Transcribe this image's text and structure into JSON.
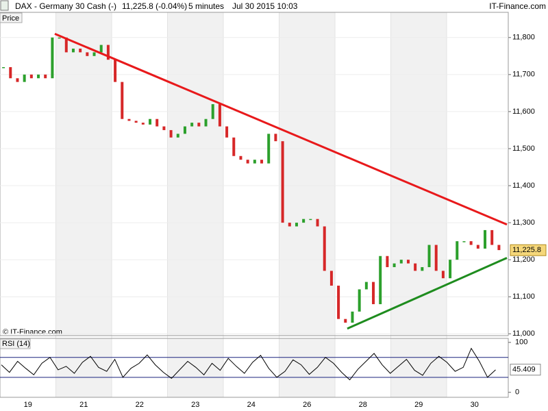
{
  "chart_data": {
    "type": "candles",
    "title": "DAX - Germany 30 Cash (-)",
    "quote": "11,225.8 (-0.04%)",
    "interval": "5 minutes",
    "timestamp": "Jul 30 2015 10:03",
    "brand": "IT-Finance.com",
    "panel_label": "Price",
    "copyright": "© IT-Finance.com",
    "up_color": "#2ca02c",
    "down_color": "#d62728",
    "ylim": [
      10995,
      11868
    ],
    "yticks": [
      {
        "value": 11000,
        "label": "11,000"
      },
      {
        "value": 11100,
        "label": "11,100"
      },
      {
        "value": 11200,
        "label": "11,200"
      },
      {
        "value": 11300,
        "label": "11,300"
      },
      {
        "value": 11400,
        "label": "11,400"
      },
      {
        "value": 11500,
        "label": "11,500"
      },
      {
        "value": 11600,
        "label": "11,600"
      },
      {
        "value": 11700,
        "label": "11,700"
      },
      {
        "value": 11800,
        "label": "11,800"
      }
    ],
    "last": {
      "value": 11225.8,
      "label": "11,225.8"
    },
    "sessions": [
      {
        "label": "19",
        "values": [
          11720,
          11690,
          11680,
          11700,
          11690,
          11700,
          11690,
          11800
        ]
      },
      {
        "label": "21",
        "values": [
          11800,
          11760,
          11770,
          11760,
          11750,
          11760,
          11780,
          11740
        ]
      },
      {
        "label": "22",
        "values": [
          11680,
          11580,
          11575,
          11570,
          11565,
          11580,
          11560,
          11550
        ]
      },
      {
        "label": "23",
        "values": [
          11530,
          11540,
          11560,
          11570,
          11560,
          11580,
          11620,
          11560
        ]
      },
      {
        "label": "24",
        "values": [
          11530,
          11480,
          11470,
          11460,
          11470,
          11460,
          11540,
          11520
        ]
      },
      {
        "label": "26",
        "values": [
          11300,
          11290,
          11300,
          11310,
          11310,
          11290,
          11170,
          11130
        ]
      },
      {
        "label": "28",
        "values": [
          11040,
          11030,
          11060,
          11120,
          11140,
          11080,
          11210,
          11180
        ]
      },
      {
        "label": "29",
        "values": [
          11190,
          11200,
          11190,
          11170,
          11180,
          11240,
          11170,
          11150
        ]
      },
      {
        "label": "30",
        "values": [
          11200,
          11250,
          11250,
          11240,
          11230,
          11280,
          11240,
          11226
        ]
      }
    ],
    "trendlines": [
      {
        "color": "#e8191b",
        "values": [
          11810,
          11295
        ]
      },
      {
        "color": "#1e8c1e",
        "values": [
          11014,
          11205
        ]
      }
    ],
    "rsi": {
      "label": "RSI (14)",
      "color": "#000000",
      "band_color": "#1a237e",
      "ylim": [
        -10,
        108
      ],
      "yticks": [
        0,
        100
      ],
      "bands": [
        30,
        70
      ],
      "last": 45.409,
      "values": [
        55,
        40,
        62,
        48,
        35,
        58,
        70,
        45,
        52,
        38,
        60,
        72,
        50,
        42,
        66,
        30,
        48,
        58,
        75,
        55,
        40,
        28,
        45,
        62,
        50,
        35,
        58,
        44,
        68,
        52,
        38,
        60,
        74,
        48,
        30,
        42,
        65,
        55,
        36,
        50,
        70,
        58,
        40,
        25,
        46,
        62,
        78,
        55,
        38,
        52,
        66,
        44,
        34,
        58,
        72,
        60,
        42,
        50,
        88,
        62,
        30,
        45
      ]
    }
  }
}
